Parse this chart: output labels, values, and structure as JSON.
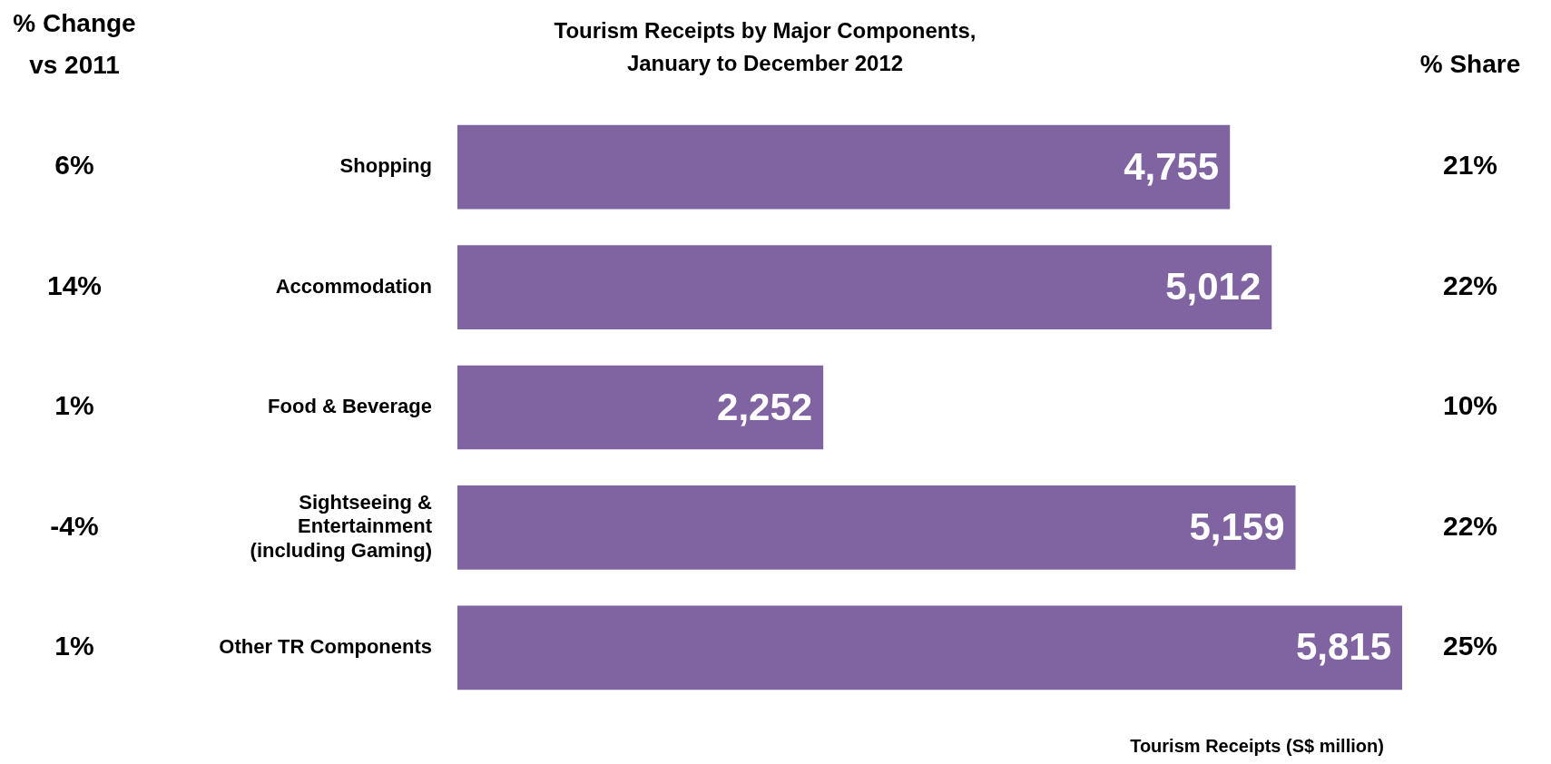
{
  "chart_data": {
    "type": "bar",
    "orientation": "horizontal",
    "title": "Tourism Receipts by Major Components, January to December 2012",
    "xlabel": "Tourism Receipts (S$ million)",
    "categories": [
      "Shopping",
      "Accommodation",
      "Food & Beverage",
      "Sightseeing & Entertainment (including Gaming)",
      "Other TR Components"
    ],
    "values": [
      4755,
      5012,
      2252,
      5159,
      5815
    ],
    "color": "#8064a2",
    "data_labels": true,
    "value_labels": [
      "4,755",
      "5,012",
      "2,252",
      "5,159",
      "5,815"
    ],
    "grid": false,
    "legend": false,
    "annotations": [
      "% Change vs 2011",
      "6%",
      "14%",
      "1%",
      "-4%",
      "1%",
      "% Share",
      "21%",
      "22%",
      "10%",
      "22%",
      "25%"
    ]
  }
}
